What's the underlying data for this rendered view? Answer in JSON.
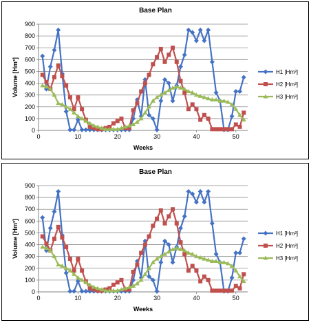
{
  "chart_data": [
    {
      "type": "line",
      "title": "Base Plan",
      "xlabel": "Weeks",
      "ylabel": "Volume [Hm³]",
      "xlim": [
        0,
        53
      ],
      "ylim": [
        0,
        900
      ],
      "xticks": [
        0,
        10,
        20,
        30,
        40,
        50
      ],
      "yticks": [
        0,
        100,
        200,
        300,
        400,
        500,
        600,
        700,
        800,
        900
      ],
      "grid": "horizontal",
      "legend": "right",
      "series": [
        {
          "name": "H1 [Hm³]",
          "color": "#4472C4",
          "marker": "diamond",
          "x": [
            1,
            2,
            3,
            4,
            5,
            6,
            7,
            8,
            9,
            10,
            11,
            12,
            13,
            14,
            15,
            16,
            17,
            18,
            19,
            20,
            21,
            22,
            23,
            24,
            25,
            26,
            27,
            28,
            29,
            30,
            31,
            32,
            33,
            34,
            35,
            36,
            37,
            38,
            39,
            40,
            41,
            42,
            43,
            44,
            45,
            46,
            47,
            48,
            49,
            50,
            51,
            52
          ],
          "y": [
            630,
            350,
            540,
            680,
            850,
            480,
            160,
            5,
            5,
            90,
            5,
            5,
            5,
            5,
            5,
            5,
            5,
            5,
            5,
            5,
            5,
            5,
            5,
            100,
            260,
            120,
            430,
            130,
            100,
            5,
            250,
            430,
            400,
            250,
            380,
            540,
            640,
            850,
            830,
            760,
            850,
            760,
            850,
            580,
            320,
            250,
            5,
            5,
            120,
            330,
            330,
            450
          ]
        },
        {
          "name": "H2 [Hm³]",
          "color": "#C0504D",
          "marker": "square",
          "x": [
            1,
            2,
            3,
            4,
            5,
            6,
            7,
            8,
            9,
            10,
            11,
            12,
            13,
            14,
            15,
            16,
            17,
            18,
            19,
            20,
            21,
            22,
            23,
            24,
            25,
            26,
            27,
            28,
            29,
            30,
            31,
            32,
            33,
            34,
            35,
            36,
            37,
            38,
            39,
            40,
            41,
            42,
            43,
            44,
            45,
            46,
            47,
            48,
            49,
            50,
            51,
            52
          ],
          "y": [
            470,
            410,
            350,
            450,
            550,
            460,
            380,
            280,
            180,
            280,
            180,
            90,
            30,
            20,
            10,
            10,
            20,
            30,
            60,
            80,
            100,
            20,
            20,
            170,
            230,
            330,
            400,
            470,
            560,
            620,
            690,
            580,
            640,
            700,
            580,
            420,
            320,
            180,
            220,
            180,
            90,
            130,
            100,
            10,
            10,
            10,
            10,
            10,
            10,
            50,
            30,
            150
          ]
        },
        {
          "name": "H3 [Hm³]",
          "color": "#9BBB59",
          "marker": "triangle",
          "x": [
            1,
            2,
            3,
            4,
            5,
            6,
            7,
            8,
            9,
            10,
            11,
            12,
            13,
            14,
            15,
            16,
            17,
            18,
            19,
            20,
            21,
            22,
            23,
            24,
            25,
            26,
            27,
            28,
            29,
            30,
            31,
            32,
            33,
            34,
            35,
            36,
            37,
            38,
            39,
            40,
            41,
            42,
            43,
            44,
            45,
            46,
            47,
            48,
            49,
            50,
            51,
            52
          ],
          "y": [
            380,
            370,
            350,
            300,
            230,
            220,
            200,
            180,
            150,
            120,
            100,
            80,
            60,
            40,
            30,
            20,
            10,
            10,
            10,
            10,
            20,
            30,
            40,
            50,
            70,
            100,
            150,
            200,
            250,
            280,
            300,
            320,
            340,
            360,
            370,
            360,
            350,
            330,
            320,
            300,
            290,
            280,
            270,
            260,
            260,
            250,
            250,
            240,
            220,
            180,
            130,
            90
          ]
        }
      ]
    },
    {
      "type": "line",
      "title": "Base Plan",
      "xlabel": "Weeks",
      "ylabel": "Volume [Hm³]",
      "xlim": [
        0,
        53
      ],
      "ylim": [
        0,
        900
      ],
      "xticks": [
        0,
        10,
        20,
        30,
        40,
        50
      ],
      "yticks": [
        0,
        100,
        200,
        300,
        400,
        500,
        600,
        700,
        800,
        900
      ],
      "grid": "horizontal",
      "legend": "right",
      "series": [
        {
          "name": "H1 [Hm³]",
          "color": "#4472C4",
          "marker": "diamond",
          "x": [
            1,
            2,
            3,
            4,
            5,
            6,
            7,
            8,
            9,
            10,
            11,
            12,
            13,
            14,
            15,
            16,
            17,
            18,
            19,
            20,
            21,
            22,
            23,
            24,
            25,
            26,
            27,
            28,
            29,
            30,
            31,
            32,
            33,
            34,
            35,
            36,
            37,
            38,
            39,
            40,
            41,
            42,
            43,
            44,
            45,
            46,
            47,
            48,
            49,
            50,
            51,
            52
          ],
          "y": [
            630,
            350,
            540,
            680,
            850,
            480,
            160,
            5,
            5,
            90,
            5,
            5,
            5,
            5,
            5,
            5,
            5,
            5,
            5,
            5,
            5,
            5,
            5,
            100,
            260,
            120,
            430,
            130,
            100,
            5,
            250,
            430,
            400,
            250,
            380,
            540,
            640,
            850,
            830,
            760,
            850,
            760,
            850,
            580,
            320,
            250,
            5,
            5,
            120,
            330,
            330,
            450
          ]
        },
        {
          "name": "H2 [Hm³]",
          "color": "#C0504D",
          "marker": "square",
          "x": [
            1,
            2,
            3,
            4,
            5,
            6,
            7,
            8,
            9,
            10,
            11,
            12,
            13,
            14,
            15,
            16,
            17,
            18,
            19,
            20,
            21,
            22,
            23,
            24,
            25,
            26,
            27,
            28,
            29,
            30,
            31,
            32,
            33,
            34,
            35,
            36,
            37,
            38,
            39,
            40,
            41,
            42,
            43,
            44,
            45,
            46,
            47,
            48,
            49,
            50,
            51,
            52
          ],
          "y": [
            470,
            410,
            350,
            450,
            550,
            460,
            380,
            280,
            180,
            280,
            180,
            90,
            30,
            20,
            10,
            10,
            20,
            30,
            60,
            80,
            100,
            20,
            20,
            170,
            230,
            330,
            400,
            470,
            560,
            620,
            690,
            580,
            640,
            700,
            580,
            420,
            320,
            180,
            220,
            180,
            90,
            130,
            100,
            10,
            10,
            10,
            10,
            10,
            10,
            50,
            30,
            150
          ]
        },
        {
          "name": "H3 [Hm³]",
          "color": "#9BBB59",
          "marker": "triangle",
          "x": [
            1,
            2,
            3,
            4,
            5,
            6,
            7,
            8,
            9,
            10,
            11,
            12,
            13,
            14,
            15,
            16,
            17,
            18,
            19,
            20,
            21,
            22,
            23,
            24,
            25,
            26,
            27,
            28,
            29,
            30,
            31,
            32,
            33,
            34,
            35,
            36,
            37,
            38,
            39,
            40,
            41,
            42,
            43,
            44,
            45,
            46,
            47,
            48,
            49,
            50,
            51,
            52
          ],
          "y": [
            380,
            370,
            350,
            300,
            230,
            220,
            200,
            180,
            150,
            120,
            100,
            80,
            60,
            40,
            30,
            20,
            10,
            10,
            10,
            10,
            20,
            30,
            40,
            50,
            70,
            100,
            150,
            200,
            250,
            280,
            300,
            320,
            340,
            360,
            370,
            360,
            350,
            330,
            320,
            300,
            290,
            280,
            270,
            260,
            260,
            250,
            250,
            240,
            220,
            180,
            130,
            90
          ]
        }
      ]
    }
  ]
}
